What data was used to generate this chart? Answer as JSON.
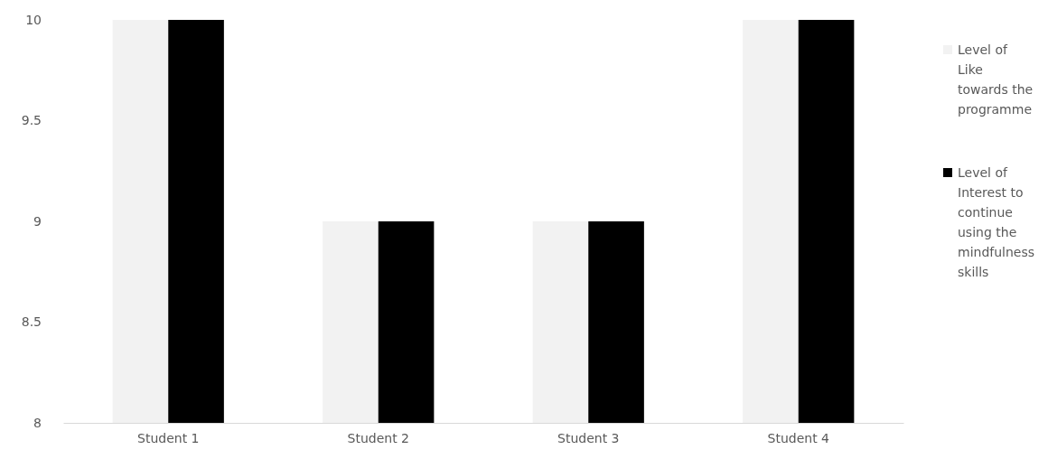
{
  "chart_data": {
    "type": "bar",
    "categories": [
      "Student 1",
      "Student 2",
      "Student 3",
      "Student 4"
    ],
    "series": [
      {
        "name": "Level of Like towards the programme",
        "color": "#f2f2f2",
        "values": [
          10,
          9,
          9,
          10
        ]
      },
      {
        "name": "Level of Interest to continue using the mindfulness skills",
        "color": "#000000",
        "values": [
          10,
          9,
          9,
          10
        ]
      }
    ],
    "ylim": [
      8,
      10
    ],
    "yticks": [
      8,
      8.5,
      9,
      9.5,
      10
    ],
    "grid": false,
    "legend": "right"
  }
}
